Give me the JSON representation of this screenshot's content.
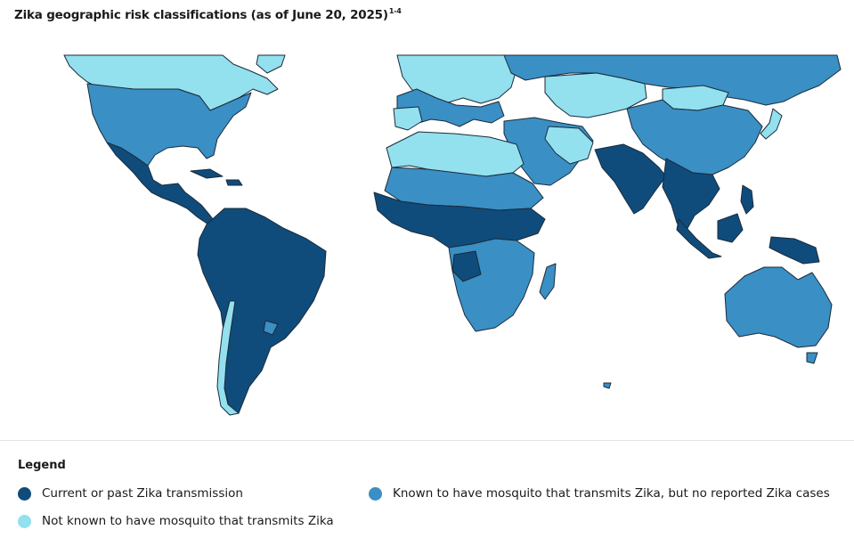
{
  "title": "Zika geographic risk classifications (as of June 20, 2025)",
  "title_superscript": "1-4",
  "colors": {
    "current_or_past": "#0f4c7c",
    "mosquito_no_cases": "#3a8fc4",
    "no_mosquito": "#93e0ee",
    "border": "#1b2b3a"
  },
  "legend": {
    "title": "Legend",
    "items": [
      {
        "key": "current_or_past",
        "label": "Current or past Zika transmission"
      },
      {
        "key": "mosquito_no_cases",
        "label": "Known to have mosquito that transmits Zika, but no reported Zika cases"
      },
      {
        "key": "no_mosquito",
        "label": "Not known to have mosquito that transmits Zika"
      }
    ]
  }
}
